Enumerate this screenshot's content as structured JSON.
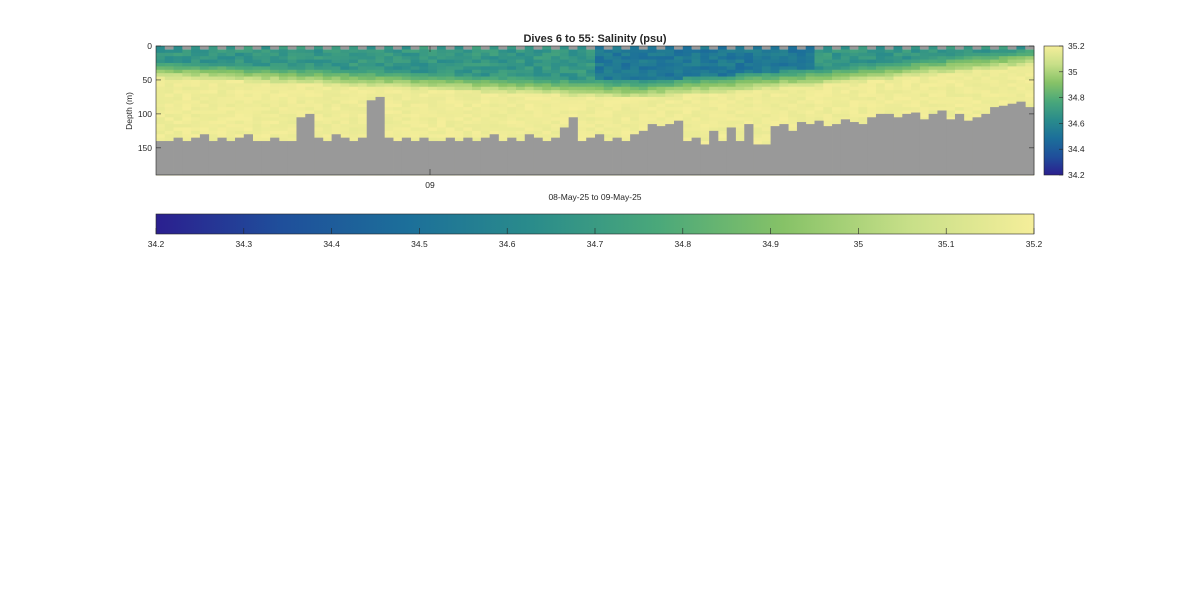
{
  "chart_data": {
    "type": "heatmap",
    "title": "Dives 6 to 55: Salinity (psu)",
    "ylabel": "Depth (m)",
    "xlabel": "08-May-25 to 09-May-25",
    "x_tick_labels": [
      "09"
    ],
    "y_ticks": [
      0,
      50,
      100,
      150
    ],
    "y_tick_labels": [
      "0",
      "50",
      "100",
      "150"
    ],
    "ylim": [
      0,
      190
    ],
    "y_reversed": true,
    "dives": [
      6,
      55
    ],
    "profile_count": 100,
    "colorbar": {
      "min": 34.2,
      "max": 35.2,
      "ticks": [
        34.2,
        34.4,
        34.6,
        34.8,
        35,
        35.2
      ],
      "tick_labels": [
        "34.2",
        "34.4",
        "34.6",
        "34.8",
        "35",
        "35.2"
      ]
    },
    "horizontal_colorbar": {
      "ticks": [
        34.2,
        34.3,
        34.4,
        34.5,
        34.6,
        34.7,
        34.8,
        34.9,
        35,
        35.1,
        35.2
      ],
      "tick_labels": [
        "34.2",
        "34.3",
        "34.4",
        "34.5",
        "34.6",
        "34.7",
        "34.8",
        "34.9",
        "35",
        "35.1",
        "35.2"
      ]
    },
    "colormap": [
      "#2b1f8f",
      "#1f4f9b",
      "#1c6f9a",
      "#2a8c8b",
      "#4aa87a",
      "#86c267",
      "#c7df88",
      "#f5ee9a"
    ],
    "no_data_color": "#999999",
    "bottom_depth_m": [
      140,
      140,
      135,
      140,
      135,
      130,
      140,
      135,
      140,
      135,
      130,
      140,
      140,
      135,
      140,
      140,
      105,
      100,
      135,
      140,
      130,
      135,
      140,
      135,
      80,
      75,
      135,
      140,
      135,
      140,
      135,
      140,
      140,
      135,
      140,
      135,
      140,
      135,
      130,
      140,
      135,
      140,
      130,
      135,
      140,
      135,
      120,
      105,
      140,
      135,
      130,
      140,
      135,
      140,
      130,
      125,
      115,
      118,
      115,
      110,
      140,
      135,
      145,
      125,
      140,
      120,
      140,
      115,
      145,
      145,
      118,
      115,
      125,
      112,
      115,
      110,
      118,
      115,
      108,
      112,
      115,
      105,
      100,
      100,
      105,
      100,
      98,
      108,
      100,
      95,
      108,
      100,
      110,
      105,
      100,
      90,
      88,
      85,
      82,
      90
    ]
  }
}
